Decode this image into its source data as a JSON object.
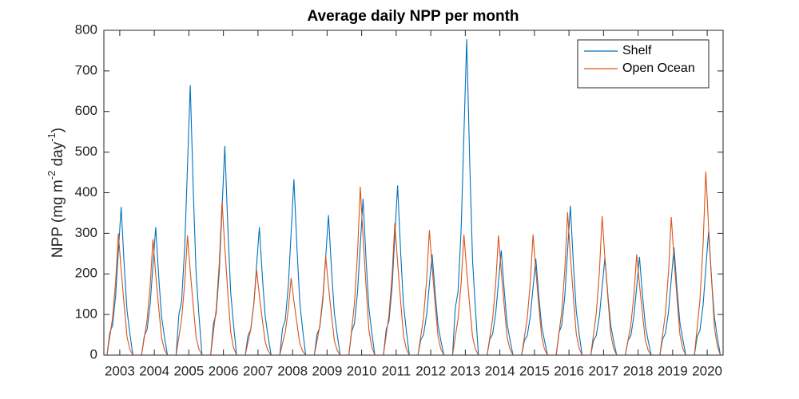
{
  "chart_data": {
    "type": "line",
    "title": "Average daily NPP per month",
    "ylabel": [
      "NPP (mg m",
      "-2",
      " day",
      "-1",
      ")"
    ],
    "x": [
      2002.54,
      2002.63,
      2002.71,
      2002.79,
      2002.88,
      2002.96,
      2003.04,
      2003.13,
      2003.21,
      2003.29,
      2003.38,
      2003.46,
      2003.54,
      2003.63,
      2003.71,
      2003.79,
      2003.88,
      2003.96,
      2004.04,
      2004.13,
      2004.21,
      2004.29,
      2004.38,
      2004.46,
      2004.54,
      2004.63,
      2004.71,
      2004.79,
      2004.88,
      2004.96,
      2005.04,
      2005.13,
      2005.21,
      2005.29,
      2005.38,
      2005.46,
      2005.54,
      2005.63,
      2005.71,
      2005.79,
      2005.88,
      2005.96,
      2006.04,
      2006.13,
      2006.21,
      2006.29,
      2006.38,
      2006.46,
      2006.54,
      2006.63,
      2006.71,
      2006.79,
      2006.88,
      2006.96,
      2007.04,
      2007.13,
      2007.21,
      2007.29,
      2007.38,
      2007.46,
      2007.54,
      2007.63,
      2007.71,
      2007.79,
      2007.88,
      2007.96,
      2008.04,
      2008.13,
      2008.21,
      2008.29,
      2008.38,
      2008.46,
      2008.54,
      2008.63,
      2008.71,
      2008.79,
      2008.88,
      2008.96,
      2009.04,
      2009.13,
      2009.21,
      2009.29,
      2009.38,
      2009.46,
      2009.54,
      2009.63,
      2009.71,
      2009.79,
      2009.88,
      2009.96,
      2010.04,
      2010.13,
      2010.21,
      2010.29,
      2010.38,
      2010.46,
      2010.54,
      2010.63,
      2010.71,
      2010.79,
      2010.88,
      2010.96,
      2011.04,
      2011.13,
      2011.21,
      2011.29,
      2011.38,
      2011.46,
      2011.54,
      2011.63,
      2011.71,
      2011.79,
      2011.88,
      2011.96,
      2012.04,
      2012.13,
      2012.21,
      2012.29,
      2012.38,
      2012.46,
      2012.54,
      2012.63,
      2012.71,
      2012.79,
      2012.88,
      2012.96,
      2013.04,
      2013.13,
      2013.21,
      2013.29,
      2013.38,
      2013.46,
      2013.54,
      2013.63,
      2013.71,
      2013.79,
      2013.88,
      2013.96,
      2014.04,
      2014.13,
      2014.21,
      2014.29,
      2014.38,
      2014.46,
      2014.54,
      2014.63,
      2014.71,
      2014.79,
      2014.88,
      2014.96,
      2015.04,
      2015.13,
      2015.21,
      2015.29,
      2015.38,
      2015.46,
      2015.54,
      2015.63,
      2015.71,
      2015.79,
      2015.88,
      2015.96,
      2016.04,
      2016.13,
      2016.21,
      2016.29,
      2016.38,
      2016.46,
      2016.54,
      2016.63,
      2016.71,
      2016.79,
      2016.88,
      2016.96,
      2017.04,
      2017.13,
      2017.21,
      2017.29,
      2017.38,
      2017.46,
      2017.54,
      2017.63,
      2017.71,
      2017.79,
      2017.88,
      2017.96,
      2018.04,
      2018.13,
      2018.21,
      2018.29,
      2018.38,
      2018.46,
      2018.54,
      2018.63,
      2018.71,
      2018.79,
      2018.88,
      2018.96,
      2019.04,
      2019.13,
      2019.21,
      2019.29,
      2019.38,
      2019.46,
      2019.54,
      2019.63,
      2019.71,
      2019.79,
      2019.88,
      2019.96,
      2020.04,
      2020.13,
      2020.21,
      2020.29,
      2020.38,
      2020.46
    ],
    "series": [
      {
        "name": "Shelf",
        "color": "#0072BD",
        "values": [
          0,
          0,
          55,
          73,
          146,
          256,
          365,
          219,
          110,
          55,
          0,
          0,
          0,
          0,
          47,
          63,
          126,
          221,
          315,
          189,
          95,
          47,
          0,
          0,
          0,
          0,
          100,
          133,
          266,
          466,
          665,
          399,
          200,
          100,
          0,
          0,
          0,
          0,
          77,
          103,
          206,
          361,
          515,
          309,
          155,
          77,
          0,
          0,
          0,
          0,
          47,
          63,
          126,
          221,
          315,
          189,
          95,
          47,
          0,
          0,
          0,
          0,
          65,
          87,
          173,
          303,
          433,
          260,
          130,
          65,
          0,
          0,
          0,
          0,
          52,
          69,
          138,
          242,
          345,
          207,
          104,
          52,
          0,
          0,
          0,
          0,
          58,
          77,
          154,
          270,
          385,
          231,
          116,
          58,
          0,
          0,
          0,
          0,
          63,
          84,
          167,
          293,
          418,
          251,
          125,
          63,
          0,
          0,
          0,
          0,
          37,
          50,
          99,
          174,
          248,
          149,
          74,
          37,
          0,
          0,
          0,
          0,
          117,
          156,
          311,
          545,
          778,
          467,
          233,
          117,
          0,
          0,
          0,
          0,
          39,
          52,
          103,
          181,
          258,
          155,
          77,
          39,
          0,
          0,
          0,
          0,
          36,
          47,
          95,
          166,
          237,
          142,
          71,
          36,
          0,
          0,
          0,
          0,
          55,
          74,
          147,
          258,
          368,
          221,
          110,
          55,
          0,
          0,
          0,
          0,
          36,
          48,
          96,
          168,
          240,
          144,
          72,
          36,
          0,
          0,
          0,
          0,
          36,
          48,
          97,
          169,
          242,
          145,
          73,
          36,
          0,
          0,
          0,
          0,
          40,
          53,
          106,
          186,
          265,
          159,
          80,
          40,
          0,
          0,
          0,
          0,
          46,
          61,
          122,
          214,
          305,
          183,
          92,
          46,
          0,
          0
        ]
      },
      {
        "name": "Open Ocean",
        "color": "#D95319",
        "values": [
          0,
          0,
          45,
          90,
          180,
          300,
          210,
          120,
          45,
          15,
          0,
          0,
          0,
          0,
          43,
          86,
          171,
          285,
          200,
          114,
          43,
          14,
          0,
          0,
          0,
          0,
          44,
          89,
          177,
          295,
          207,
          118,
          44,
          15,
          0,
          0,
          0,
          0,
          57,
          113,
          227,
          378,
          265,
          151,
          57,
          19,
          0,
          0,
          0,
          0,
          32,
          63,
          126,
          210,
          147,
          84,
          32,
          11,
          0,
          0,
          0,
          0,
          29,
          57,
          114,
          190,
          133,
          76,
          29,
          10,
          0,
          0,
          0,
          0,
          36,
          73,
          146,
          243,
          170,
          97,
          36,
          12,
          0,
          0,
          0,
          0,
          62,
          125,
          249,
          415,
          291,
          166,
          62,
          21,
          0,
          0,
          0,
          0,
          49,
          98,
          195,
          325,
          228,
          130,
          49,
          16,
          0,
          0,
          0,
          0,
          46,
          92,
          185,
          308,
          216,
          123,
          46,
          15,
          0,
          0,
          0,
          0,
          45,
          89,
          178,
          297,
          208,
          119,
          45,
          15,
          0,
          0,
          0,
          0,
          44,
          89,
          177,
          295,
          207,
          118,
          44,
          15,
          0,
          0,
          0,
          0,
          45,
          89,
          178,
          297,
          208,
          119,
          45,
          15,
          0,
          0,
          0,
          0,
          53,
          106,
          211,
          352,
          246,
          141,
          53,
          18,
          0,
          0,
          0,
          0,
          51,
          103,
          205,
          342,
          239,
          137,
          51,
          17,
          0,
          0,
          0,
          0,
          37,
          74,
          149,
          248,
          174,
          99,
          37,
          12,
          0,
          0,
          0,
          0,
          51,
          102,
          204,
          340,
          238,
          136,
          51,
          17,
          0,
          0,
          0,
          0,
          68,
          136,
          271,
          452,
          316,
          181,
          68,
          23,
          0,
          0
        ]
      }
    ],
    "xlim": [
      2002.54,
      2020.46
    ],
    "xticks": [
      2003,
      2004,
      2005,
      2006,
      2007,
      2008,
      2009,
      2010,
      2011,
      2012,
      2013,
      2014,
      2015,
      2016,
      2017,
      2018,
      2019,
      2020
    ],
    "ylim": [
      0,
      800
    ],
    "yticks": [
      0,
      100,
      200,
      300,
      400,
      500,
      600,
      700,
      800
    ],
    "grid": false,
    "legend": "top-right"
  }
}
